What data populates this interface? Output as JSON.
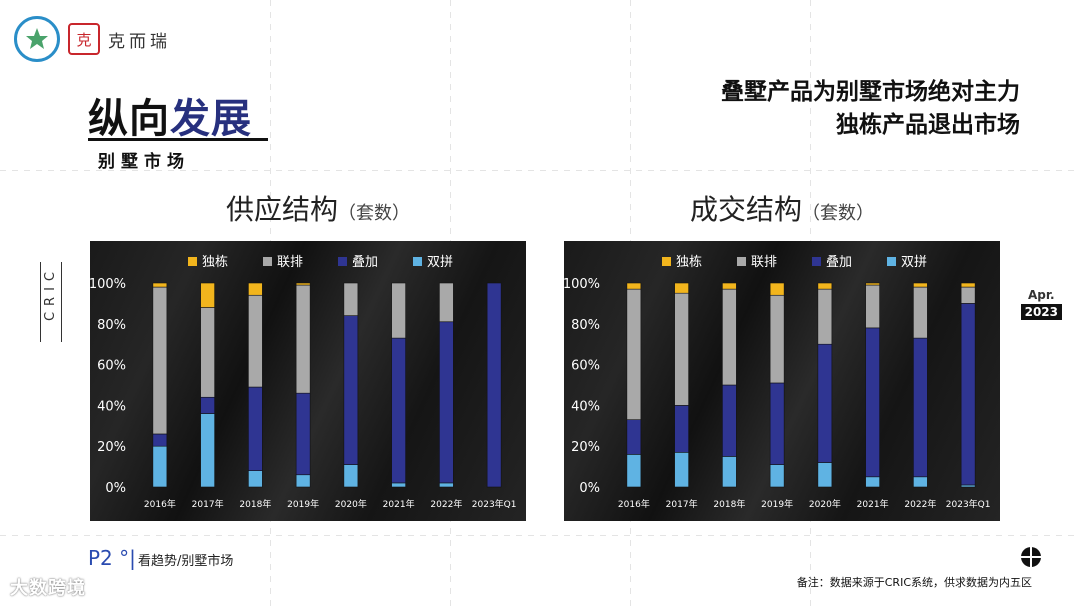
{
  "brand": {
    "name": "克而瑞",
    "seal_char": "克"
  },
  "section": {
    "title_black": "纵向",
    "title_accent": "发展",
    "subtitle": "别墅市场"
  },
  "headline": {
    "line1": "叠墅产品为别墅市场绝对主力",
    "line2": "独栋产品退出市场"
  },
  "side_label": "CRIC",
  "date_badge": {
    "month": "Apr.",
    "year": "2023"
  },
  "footer": {
    "page": "P2 °|",
    "breadcrumb": "看趋势/别墅市场",
    "note": "备注：数据来源于CRIC系统，供求数据为内五区",
    "watermark": "大数跨境"
  },
  "colors": {
    "独栋": "#f2b51d",
    "联排": "#a9a9a9",
    "叠加": "#2f3592",
    "双拼": "#5fb3e3",
    "accent": "#27307e"
  },
  "chart_data": [
    {
      "type": "bar",
      "stacked": true,
      "title": "供应结构",
      "unit_note": "（套数）",
      "categories": [
        "2016年",
        "2017年",
        "2018年",
        "2019年",
        "2020年",
        "2021年",
        "2022年",
        "2023年Q1"
      ],
      "ylim": [
        0,
        100
      ],
      "yticks": [
        "0%",
        "20%",
        "40%",
        "60%",
        "80%",
        "100%"
      ],
      "legend_position": "top",
      "series": [
        {
          "name": "双拼",
          "values": [
            20,
            36,
            8,
            6,
            11,
            2,
            2,
            0
          ]
        },
        {
          "name": "叠加",
          "values": [
            6,
            8,
            41,
            40,
            73,
            71,
            79,
            100
          ]
        },
        {
          "name": "联排",
          "values": [
            72,
            44,
            45,
            53,
            16,
            27,
            19,
            0
          ]
        },
        {
          "name": "独栋",
          "values": [
            2,
            12,
            6,
            1,
            0,
            0,
            0,
            0
          ]
        }
      ]
    },
    {
      "type": "bar",
      "stacked": true,
      "title": "成交结构",
      "unit_note": "（套数）",
      "categories": [
        "2016年",
        "2017年",
        "2018年",
        "2019年",
        "2020年",
        "2021年",
        "2022年",
        "2023年Q1"
      ],
      "ylim": [
        0,
        100
      ],
      "yticks": [
        "0%",
        "20%",
        "40%",
        "60%",
        "80%",
        "100%"
      ],
      "legend_position": "top",
      "series": [
        {
          "name": "双拼",
          "values": [
            16,
            17,
            15,
            11,
            12,
            5,
            5,
            1
          ]
        },
        {
          "name": "叠加",
          "values": [
            17,
            23,
            35,
            40,
            58,
            73,
            68,
            89
          ]
        },
        {
          "name": "联排",
          "values": [
            64,
            55,
            47,
            43,
            27,
            21,
            25,
            8
          ]
        },
        {
          "name": "独栋",
          "values": [
            3,
            5,
            3,
            6,
            3,
            1,
            2,
            2
          ]
        }
      ]
    }
  ]
}
